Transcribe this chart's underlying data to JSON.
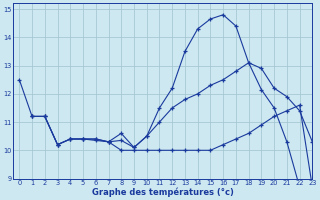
{
  "xlabel": "Graphe des températures (°c)",
  "xlim": [
    -0.5,
    23
  ],
  "ylim": [
    9,
    15.2
  ],
  "yticks": [
    9,
    10,
    11,
    12,
    13,
    14,
    15
  ],
  "xticks": [
    0,
    1,
    2,
    3,
    4,
    5,
    6,
    7,
    8,
    9,
    10,
    11,
    12,
    13,
    14,
    15,
    16,
    17,
    18,
    19,
    20,
    21,
    22,
    23
  ],
  "bg_color": "#cde8f0",
  "line_color": "#1a3a9e",
  "grid_color": "#a0c4d0",
  "curve1_x": [
    0,
    1,
    2,
    3,
    4,
    5,
    6,
    7,
    8,
    9,
    10,
    11,
    12,
    13,
    14,
    15,
    16,
    17,
    18,
    19,
    20,
    21,
    22,
    23
  ],
  "curve1_y": [
    12.5,
    11.2,
    11.2,
    10.2,
    10.4,
    10.4,
    10.35,
    10.3,
    10.35,
    10.1,
    10.5,
    11.5,
    12.2,
    13.5,
    14.3,
    14.65,
    14.8,
    14.4,
    13.1,
    12.15,
    11.5,
    10.3,
    8.7,
    8.7
  ],
  "curve2_x": [
    1,
    2,
    3,
    4,
    5,
    6,
    7,
    8,
    9,
    10,
    11,
    12,
    13,
    14,
    15,
    16,
    17,
    18,
    19,
    20,
    21,
    22,
    23
  ],
  "curve2_y": [
    11.2,
    11.2,
    10.2,
    10.4,
    10.4,
    10.4,
    10.3,
    10.6,
    10.1,
    10.5,
    11.0,
    11.5,
    11.8,
    12.0,
    12.3,
    12.5,
    12.8,
    13.1,
    12.9,
    12.2,
    11.9,
    11.4,
    10.3
  ],
  "curve3_x": [
    1,
    2,
    3,
    4,
    5,
    6,
    7,
    8,
    9,
    10,
    11,
    12,
    13,
    14,
    15,
    16,
    17,
    18,
    19,
    20,
    21,
    22,
    23
  ],
  "curve3_y": [
    11.2,
    11.2,
    10.2,
    10.4,
    10.4,
    10.4,
    10.3,
    10.0,
    10.0,
    10.0,
    10.0,
    10.0,
    10.0,
    10.0,
    10.0,
    10.2,
    10.4,
    10.6,
    10.9,
    11.2,
    11.4,
    11.6,
    8.7
  ]
}
